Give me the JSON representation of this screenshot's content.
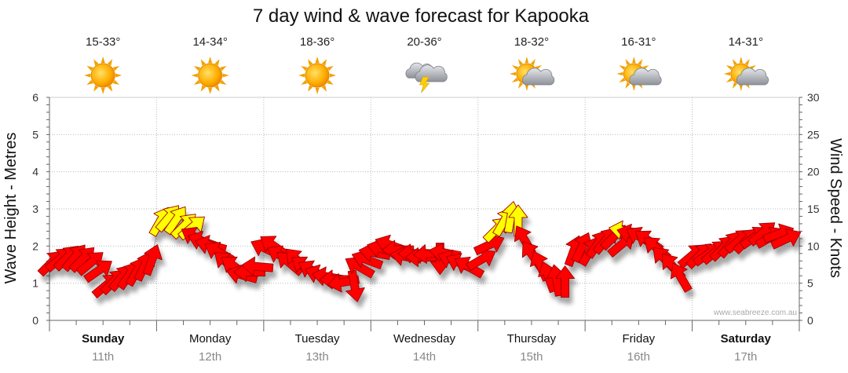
{
  "chart_data": {
    "type": "line",
    "title": "7 day wind & wave forecast for Kapooka",
    "ylabel_left": "Wave Height - Metres",
    "ylabel_right": "Wind Speed - Knots",
    "ylim_left": [
      0,
      6
    ],
    "ylim_right": [
      0,
      30
    ],
    "yticks_left": [
      "0",
      "1",
      "2",
      "3",
      "4",
      "5",
      "6"
    ],
    "yticks_right": [
      "0",
      "5",
      "10",
      "15",
      "20",
      "25",
      "30"
    ],
    "watermark": "www.seabreeze.com.au",
    "days": [
      {
        "name": "Sunday",
        "date": "11th",
        "bold": true,
        "temp": "15-33°",
        "icon": "sunny"
      },
      {
        "name": "Monday",
        "date": "12th",
        "bold": false,
        "temp": "14-34°",
        "icon": "sunny"
      },
      {
        "name": "Tuesday",
        "date": "13th",
        "bold": false,
        "temp": "18-36°",
        "icon": "sunny"
      },
      {
        "name": "Wednesday",
        "date": "14th",
        "bold": false,
        "temp": "20-36°",
        "icon": "storm"
      },
      {
        "name": "Thursday",
        "date": "15th",
        "bold": false,
        "temp": "18-32°",
        "icon": "partly-cloudy"
      },
      {
        "name": "Friday",
        "date": "16th",
        "bold": false,
        "temp": "16-31°",
        "icon": "partly-cloudy"
      },
      {
        "name": "Saturday",
        "date": "17th",
        "bold": true,
        "temp": "14-31°",
        "icon": "partly-cloudy"
      }
    ],
    "wind_series": {
      "name": "Wind Speed (knots)",
      "color_normal": "#ff0000",
      "color_gust": "#ffff00",
      "points": [
        {
          "t": 0.0,
          "v": 7.5,
          "dir": 45,
          "c": "r"
        },
        {
          "t": 0.1,
          "v": 8.0,
          "dir": 50,
          "c": "r"
        },
        {
          "t": 0.2,
          "v": 8.2,
          "dir": 45,
          "c": "r"
        },
        {
          "t": 0.3,
          "v": 8.2,
          "dir": 40,
          "c": "r"
        },
        {
          "t": 0.4,
          "v": 8.0,
          "dir": 45,
          "c": "r"
        },
        {
          "t": 0.5,
          "v": 7.5,
          "dir": 50,
          "c": "r"
        },
        {
          "t": 0.6,
          "v": 6.5,
          "dir": 55,
          "c": "r"
        },
        {
          "t": 0.7,
          "v": 4.5,
          "dir": 50,
          "c": "r"
        },
        {
          "t": 0.8,
          "v": 5.0,
          "dir": 45,
          "c": "r"
        },
        {
          "t": 0.9,
          "v": 5.5,
          "dir": 40,
          "c": "r"
        },
        {
          "t": 1.0,
          "v": 5.8,
          "dir": 35,
          "c": "r"
        },
        {
          "t": 1.1,
          "v": 6.3,
          "dir": 30,
          "c": "r"
        },
        {
          "t": 1.2,
          "v": 7.0,
          "dir": 25,
          "c": "r"
        },
        {
          "t": 1.3,
          "v": 7.8,
          "dir": 20,
          "c": "r"
        },
        {
          "t": 1.4,
          "v": 13.0,
          "dir": 30,
          "c": "y"
        },
        {
          "t": 1.5,
          "v": 13.5,
          "dir": 40,
          "c": "y"
        },
        {
          "t": 1.6,
          "v": 13.2,
          "dir": 35,
          "c": "y"
        },
        {
          "t": 1.7,
          "v": 12.5,
          "dir": 45,
          "c": "y"
        },
        {
          "t": 1.8,
          "v": 12.3,
          "dir": 50,
          "c": "y"
        },
        {
          "t": 1.9,
          "v": 11.0,
          "dir": -60,
          "c": "r"
        },
        {
          "t": 2.0,
          "v": 10.5,
          "dir": -70,
          "c": "r"
        },
        {
          "t": 2.1,
          "v": 10.0,
          "dir": -75,
          "c": "r"
        },
        {
          "t": 2.2,
          "v": 9.0,
          "dir": -60,
          "c": "r"
        },
        {
          "t": 2.3,
          "v": 7.5,
          "dir": -50,
          "c": "r"
        },
        {
          "t": 2.4,
          "v": 7.0,
          "dir": -55,
          "c": "r"
        },
        {
          "t": 2.5,
          "v": 6.0,
          "dir": -75,
          "c": "r"
        },
        {
          "t": 2.6,
          "v": 6.5,
          "dir": -90,
          "c": "r"
        },
        {
          "t": 2.7,
          "v": 7.2,
          "dir": -85,
          "c": "r"
        },
        {
          "t": 2.8,
          "v": 9.5,
          "dir": -65,
          "c": "r"
        },
        {
          "t": 2.9,
          "v": 9.8,
          "dir": -55,
          "c": "r"
        },
        {
          "t": 3.0,
          "v": 8.5,
          "dir": -60,
          "c": "r"
        },
        {
          "t": 3.1,
          "v": 7.5,
          "dir": -50,
          "c": "r"
        },
        {
          "t": 3.2,
          "v": 7.8,
          "dir": -45,
          "c": "r"
        },
        {
          "t": 3.3,
          "v": 7.0,
          "dir": -55,
          "c": "r"
        },
        {
          "t": 3.4,
          "v": 6.5,
          "dir": -60,
          "c": "r"
        },
        {
          "t": 3.5,
          "v": 6.0,
          "dir": -70,
          "c": "r"
        },
        {
          "t": 3.6,
          "v": 5.8,
          "dir": -80,
          "c": "r"
        },
        {
          "t": 3.7,
          "v": 5.5,
          "dir": -90,
          "c": "r"
        },
        {
          "t": 3.8,
          "v": 5.2,
          "dir": -100,
          "c": "r"
        },
        {
          "t": 3.9,
          "v": 5.0,
          "dir": 170,
          "c": "r"
        },
        {
          "t": 4.0,
          "v": 7.0,
          "dir": -60,
          "c": "r"
        },
        {
          "t": 4.1,
          "v": 8.0,
          "dir": -70,
          "c": "r"
        },
        {
          "t": 4.2,
          "v": 9.0,
          "dir": -80,
          "c": "r"
        },
        {
          "t": 4.3,
          "v": 9.5,
          "dir": -75,
          "c": "r"
        },
        {
          "t": 4.4,
          "v": 10.0,
          "dir": -70,
          "c": "r"
        },
        {
          "t": 4.5,
          "v": 9.5,
          "dir": -90,
          "c": "r"
        },
        {
          "t": 4.6,
          "v": 8.5,
          "dir": -80,
          "c": "r"
        },
        {
          "t": 4.7,
          "v": 9.0,
          "dir": -90,
          "c": "r"
        },
        {
          "t": 4.8,
          "v": 8.5,
          "dir": -90,
          "c": "r"
        },
        {
          "t": 4.9,
          "v": 9.0,
          "dir": -95,
          "c": "r"
        },
        {
          "t": 5.0,
          "v": 8.7,
          "dir": 180,
          "c": "r"
        },
        {
          "t": 5.1,
          "v": 9.0,
          "dir": -80,
          "c": "r"
        },
        {
          "t": 5.2,
          "v": 8.0,
          "dir": -70,
          "c": "r"
        },
        {
          "t": 5.3,
          "v": 7.5,
          "dir": -65,
          "c": "r"
        },
        {
          "t": 5.4,
          "v": 7.0,
          "dir": -60,
          "c": "r"
        },
        {
          "t": 5.5,
          "v": 8.0,
          "dir": 60,
          "c": "r"
        },
        {
          "t": 5.6,
          "v": 10.0,
          "dir": 65,
          "c": "r"
        },
        {
          "t": 5.7,
          "v": 12.0,
          "dir": 45,
          "c": "y"
        },
        {
          "t": 5.8,
          "v": 13.0,
          "dir": 30,
          "c": "y"
        },
        {
          "t": 5.9,
          "v": 13.5,
          "dir": 10,
          "c": "y"
        },
        {
          "t": 6.0,
          "v": 13.0,
          "dir": 0,
          "c": "y"
        },
        {
          "t": 6.1,
          "v": 10.5,
          "dir": -30,
          "c": "r"
        },
        {
          "t": 6.2,
          "v": 8.5,
          "dir": -35,
          "c": "r"
        },
        {
          "t": 6.3,
          "v": 7.0,
          "dir": -25,
          "c": "r"
        },
        {
          "t": 6.4,
          "v": 5.5,
          "dir": -20,
          "c": "r"
        },
        {
          "t": 6.5,
          "v": 5.0,
          "dir": -10,
          "c": "r"
        },
        {
          "t": 6.6,
          "v": 4.8,
          "dir": 0,
          "c": "r"
        },
        {
          "t": 6.7,
          "v": 9.0,
          "dir": 20,
          "c": "r"
        },
        {
          "t": 6.8,
          "v": 9.5,
          "dir": 25,
          "c": "r"
        },
        {
          "t": 6.9,
          "v": 9.0,
          "dir": 30,
          "c": "r"
        },
        {
          "t": 7.0,
          "v": 10.0,
          "dir": 35,
          "c": "r"
        },
        {
          "t": 7.1,
          "v": 10.5,
          "dir": 40,
          "c": "r"
        },
        {
          "t": 7.2,
          "v": 11.0,
          "dir": 45,
          "c": "r"
        },
        {
          "t": 7.3,
          "v": 10.0,
          "dir": 50,
          "c": "r"
        },
        {
          "t": 7.4,
          "v": 12.0,
          "dir": -80,
          "c": "y"
        },
        {
          "t": 7.5,
          "v": 11.5,
          "dir": -75,
          "c": "r"
        },
        {
          "t": 7.6,
          "v": 11.0,
          "dir": -60,
          "c": "r"
        },
        {
          "t": 7.7,
          "v": 10.5,
          "dir": -55,
          "c": "r"
        },
        {
          "t": 7.8,
          "v": 9.5,
          "dir": -50,
          "c": "r"
        },
        {
          "t": 7.9,
          "v": 8.0,
          "dir": -45,
          "c": "r"
        },
        {
          "t": 8.0,
          "v": 7.0,
          "dir": -40,
          "c": "r"
        },
        {
          "t": 8.1,
          "v": 5.5,
          "dir": -30,
          "c": "r"
        },
        {
          "t": 8.2,
          "v": 8.5,
          "dir": 50,
          "c": "r"
        },
        {
          "t": 8.3,
          "v": 8.5,
          "dir": 45,
          "c": "r"
        },
        {
          "t": 8.4,
          "v": 8.7,
          "dir": 55,
          "c": "r"
        },
        {
          "t": 8.5,
          "v": 9.0,
          "dir": 50,
          "c": "r"
        },
        {
          "t": 8.6,
          "v": 9.5,
          "dir": 45,
          "c": "r"
        },
        {
          "t": 8.7,
          "v": 10.0,
          "dir": 40,
          "c": "r"
        },
        {
          "t": 8.8,
          "v": 10.5,
          "dir": 50,
          "c": "r"
        },
        {
          "t": 8.9,
          "v": 10.5,
          "dir": 45,
          "c": "r"
        },
        {
          "t": 9.0,
          "v": 11.0,
          "dir": 55,
          "c": "r"
        },
        {
          "t": 9.1,
          "v": 11.5,
          "dir": 50,
          "c": "r"
        },
        {
          "t": 9.2,
          "v": 11.0,
          "dir": 60,
          "c": "r"
        },
        {
          "t": 9.3,
          "v": 11.5,
          "dir": 70,
          "c": "r"
        },
        {
          "t": 9.4,
          "v": 10.8,
          "dir": 65,
          "c": "r"
        }
      ]
    }
  }
}
